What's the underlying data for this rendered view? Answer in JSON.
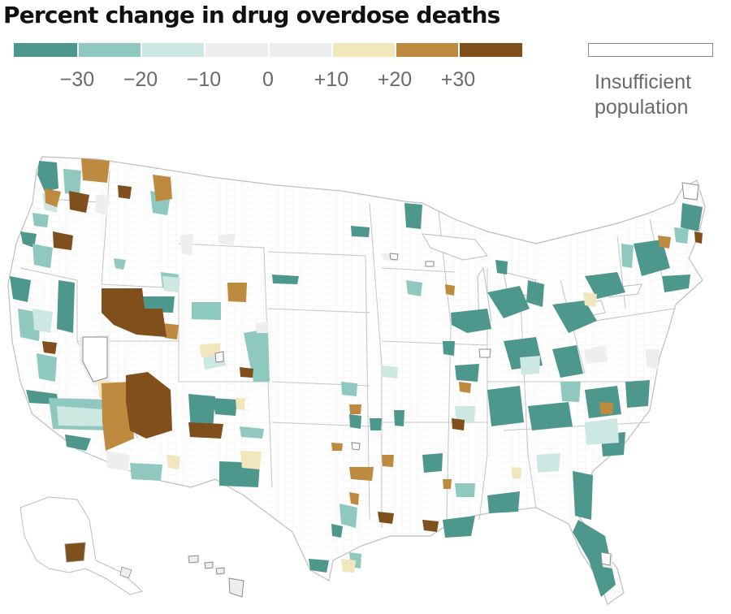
{
  "title": "Percent change in drug overdose deaths",
  "legend": {
    "bins": [
      {
        "range": "< -30",
        "color": "#4e978c"
      },
      {
        "range": "-30 to -20",
        "color": "#8ec8bf"
      },
      {
        "range": "-20 to -10",
        "color": "#cde7e3"
      },
      {
        "range": "-10 to 0",
        "color": "#eeeeee"
      },
      {
        "range": "0 to +10",
        "color": "#eeeeee"
      },
      {
        "range": "+10 to +20",
        "color": "#f2e6bd"
      },
      {
        "range": "+20 to +30",
        "color": "#be8a3f"
      },
      {
        "range": "> +30",
        "color": "#80501c"
      }
    ],
    "tick_labels": [
      "−30",
      "−20",
      "−10",
      "0",
      "+10",
      "+20",
      "+30"
    ],
    "insufficient": {
      "line1": "Insufficient",
      "line2": "population",
      "color": "#ffffff",
      "border": "#8a8a8a"
    }
  },
  "map_colors": {
    "border": "#d5d5d5",
    "state_border": "#bdbdbd",
    "land": "#ffffff"
  }
}
